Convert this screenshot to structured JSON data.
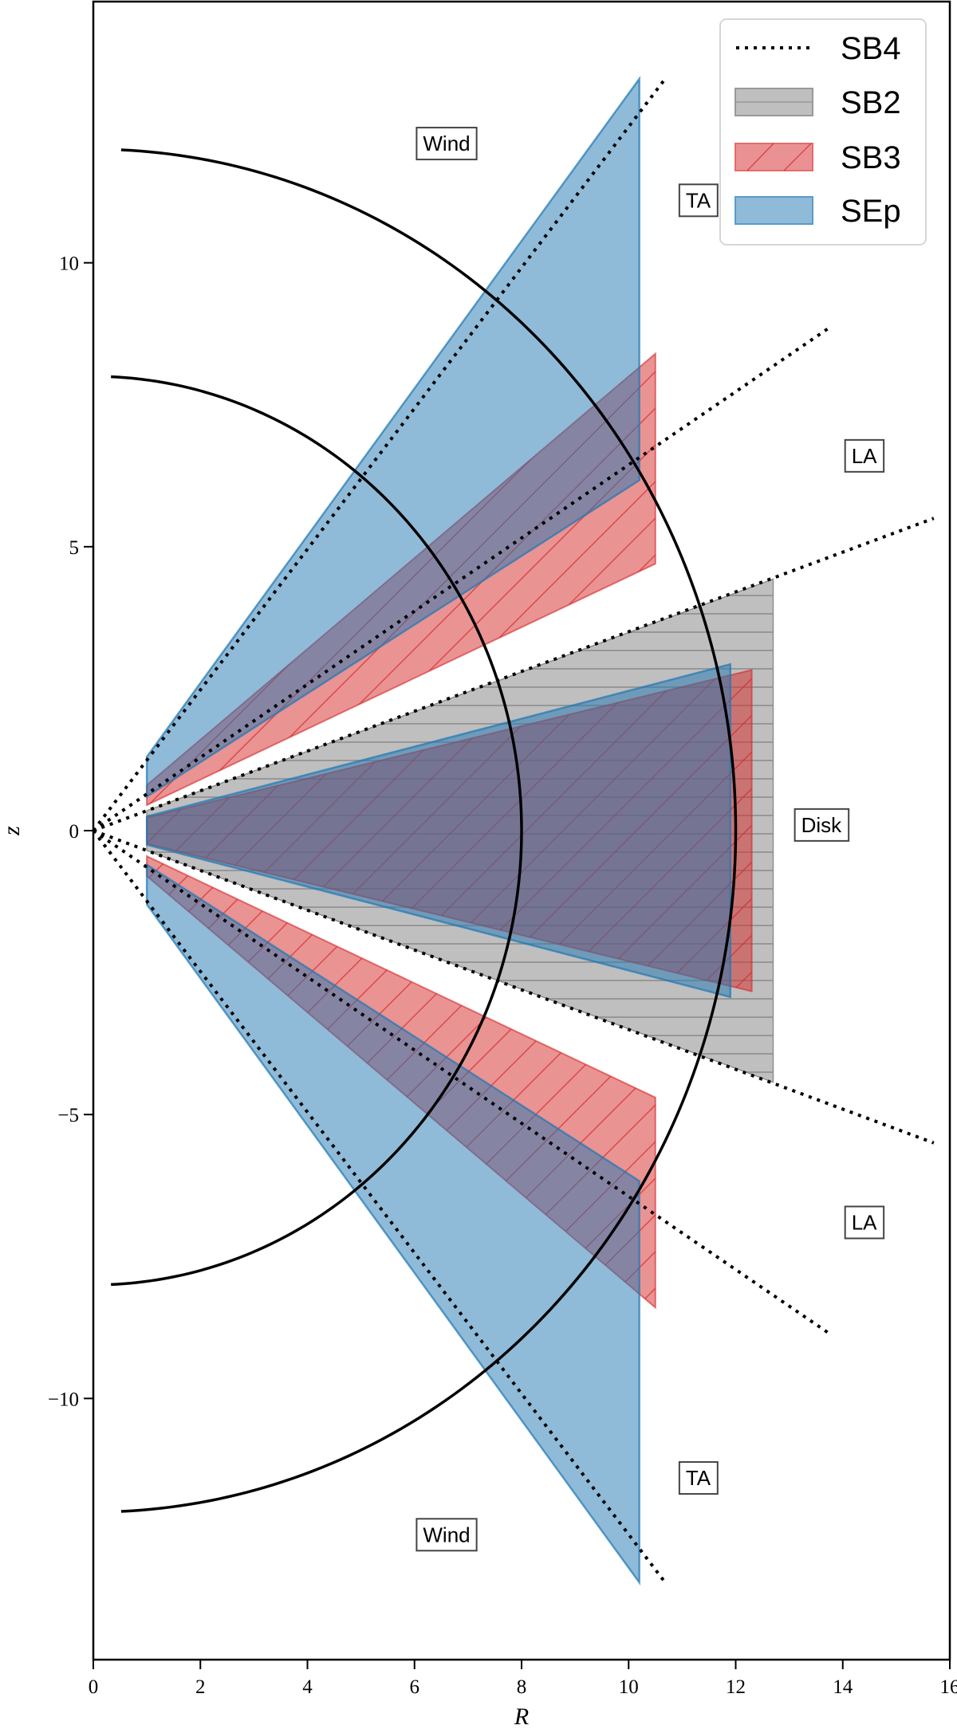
{
  "chart_data": {
    "type": "area",
    "xlabel": "R",
    "ylabel": "z",
    "xlim": [
      0,
      16
    ],
    "ylim": [
      -14.6,
      14.6
    ],
    "xticks": [
      0,
      2,
      4,
      6,
      8,
      10,
      12,
      14,
      16
    ],
    "yticks": [
      -10,
      -5,
      0,
      5,
      10
    ],
    "xtick_labels": [
      "0",
      "2",
      "4",
      "6",
      "8",
      "10",
      "12",
      "14",
      "16"
    ],
    "ytick_labels": [
      "−10",
      "−5",
      "0",
      "5",
      "10"
    ],
    "grid": false,
    "legend_placement": "top-right",
    "legend": [
      {
        "name": "SB4",
        "style": "dotted-line",
        "color": "#000000"
      },
      {
        "name": "SB2",
        "style": "horizontal-hatch",
        "color": "#7f7f7f"
      },
      {
        "name": "SB3",
        "style": "diagonal-hatch",
        "color": "#d62728"
      },
      {
        "name": "SEp",
        "style": "solid",
        "color": "#1f77b4"
      }
    ],
    "series": [
      {
        "name": "SB2",
        "color": "#7f7f7f",
        "polygons": [
          [
            [
              1,
              0.35
            ],
            [
              12.7,
              4.43
            ],
            [
              12.7,
              -4.43
            ],
            [
              1,
              -0.35
            ]
          ]
        ]
      },
      {
        "name": "SB3",
        "color": "#d62728",
        "polygons": [
          [
            [
              1,
              0.45
            ],
            [
              1,
              0.8
            ],
            [
              10.5,
              8.4
            ],
            [
              10.5,
              4.7
            ]
          ],
          [
            [
              1,
              0.23
            ],
            [
              12.3,
              2.83
            ],
            [
              12.3,
              -2.83
            ],
            [
              1,
              -0.23
            ]
          ],
          [
            [
              1,
              -0.45
            ],
            [
              1,
              -0.8
            ],
            [
              10.5,
              -8.4
            ],
            [
              10.5,
              -4.7
            ]
          ]
        ]
      },
      {
        "name": "SEp",
        "color": "#1f77b4",
        "polygons": [
          [
            [
              1,
              0.6
            ],
            [
              1,
              1.3
            ],
            [
              10.2,
              13.24
            ],
            [
              10.2,
              6.17
            ]
          ],
          [
            [
              1,
              0.25
            ],
            [
              11.9,
              2.93
            ],
            [
              11.9,
              -2.93
            ],
            [
              1,
              -0.25
            ]
          ],
          [
            [
              1,
              -0.6
            ],
            [
              1,
              -1.3
            ],
            [
              10.2,
              -13.24
            ],
            [
              10.2,
              -6.17
            ]
          ]
        ]
      },
      {
        "name": "SB4",
        "color": "#000000",
        "lines": [
          [
            [
              0,
              0
            ],
            [
              10.65,
              13.2
            ]
          ],
          [
            [
              0,
              0
            ],
            [
              13.77,
              8.87
            ]
          ],
          [
            [
              0,
              0
            ],
            [
              15.7,
              5.5
            ]
          ],
          [
            [
              0,
              0
            ],
            [
              15.7,
              -5.5
            ]
          ],
          [
            [
              0,
              0
            ],
            [
              13.77,
              -8.87
            ]
          ],
          [
            [
              0,
              0
            ],
            [
              10.65,
              -13.2
            ]
          ]
        ]
      }
    ],
    "arcs": [
      {
        "radius": 8,
        "r_min": 0.33
      },
      {
        "radius": 12,
        "r_min": 0.52
      }
    ],
    "annotations": [
      {
        "text": "Wind",
        "R": 6.6,
        "z": 12.1
      },
      {
        "text": "TA",
        "R": 11.3,
        "z": 11.1
      },
      {
        "text": "LA",
        "R": 14.4,
        "z": 6.6
      },
      {
        "text": "Disk",
        "R": 13.6,
        "z": 0.1
      },
      {
        "text": "LA",
        "R": 14.4,
        "z": -6.9
      },
      {
        "text": "TA",
        "R": 11.3,
        "z": -11.4
      },
      {
        "text": "Wind",
        "R": 6.6,
        "z": -12.4
      }
    ]
  }
}
